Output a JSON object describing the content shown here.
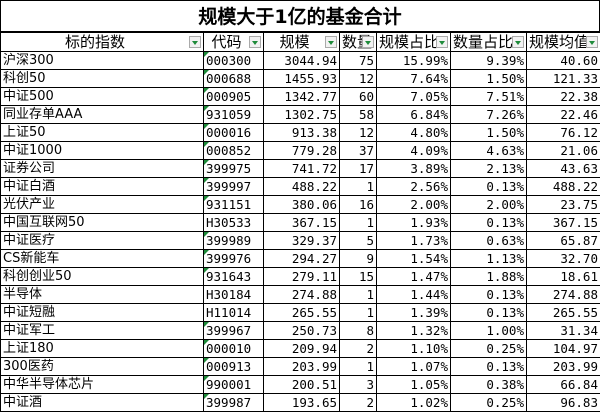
{
  "title": "规模大于1亿的基金合计",
  "headers": [
    "标的指数",
    "代码",
    "规模",
    "数量",
    "规模占比",
    "数量占比",
    "规模均值"
  ],
  "colors": {
    "indicator": "#1e8b3a"
  },
  "rows": [
    [
      "沪深300",
      "000300",
      "3044.94",
      "75",
      "15.99%",
      "9.39%",
      "40.60"
    ],
    [
      "科创50",
      "000688",
      "1455.93",
      "12",
      "7.64%",
      "1.50%",
      "121.33"
    ],
    [
      "中证500",
      "000905",
      "1342.77",
      "60",
      "7.05%",
      "7.51%",
      "22.38"
    ],
    [
      "同业存单AAA",
      "931059",
      "1302.75",
      "58",
      "6.84%",
      "7.26%",
      "22.46"
    ],
    [
      "上证50",
      "000016",
      "913.38",
      "12",
      "4.80%",
      "1.50%",
      "76.12"
    ],
    [
      "中证1000",
      "000852",
      "779.28",
      "37",
      "4.09%",
      "4.63%",
      "21.06"
    ],
    [
      "证券公司",
      "399975",
      "741.72",
      "17",
      "3.89%",
      "2.13%",
      "43.63"
    ],
    [
      "中证白酒",
      "399997",
      "488.22",
      "1",
      "2.56%",
      "0.13%",
      "488.22"
    ],
    [
      "光伏产业",
      "931151",
      "380.06",
      "16",
      "2.00%",
      "2.00%",
      "23.75"
    ],
    [
      "中国互联网50",
      "H30533",
      "367.15",
      "1",
      "1.93%",
      "0.13%",
      "367.15"
    ],
    [
      "中证医疗",
      "399989",
      "329.37",
      "5",
      "1.73%",
      "0.63%",
      "65.87"
    ],
    [
      "CS新能车",
      "399976",
      "294.27",
      "9",
      "1.54%",
      "1.13%",
      "32.70"
    ],
    [
      "科创创业50",
      "931643",
      "279.11",
      "15",
      "1.47%",
      "1.88%",
      "18.61"
    ],
    [
      "半导体",
      "H30184",
      "274.88",
      "1",
      "1.44%",
      "0.13%",
      "274.88"
    ],
    [
      "中证短融",
      "H11014",
      "265.55",
      "1",
      "1.39%",
      "0.13%",
      "265.55"
    ],
    [
      "中证军工",
      "399967",
      "250.73",
      "8",
      "1.32%",
      "1.00%",
      "31.34"
    ],
    [
      "上证180",
      "000010",
      "209.94",
      "2",
      "1.10%",
      "0.25%",
      "104.97"
    ],
    [
      "300医药",
      "000913",
      "203.99",
      "1",
      "1.07%",
      "0.13%",
      "203.99"
    ],
    [
      "中华半导体芯片",
      "990001",
      "200.51",
      "3",
      "1.05%",
      "0.38%",
      "66.84"
    ],
    [
      "中证酒",
      "399987",
      "193.65",
      "2",
      "1.02%",
      "0.25%",
      "96.83"
    ]
  ]
}
